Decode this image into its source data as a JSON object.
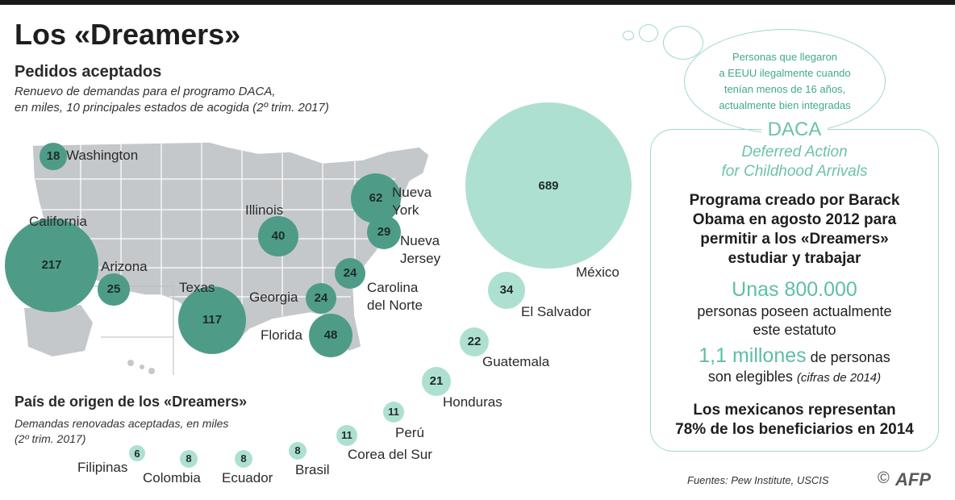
{
  "header": {
    "title": "Los «Dreamers»",
    "subtitle": "Pedidos aceptados",
    "description": "Renuevo de demandas para el programo DACA,\nen miles, 10 principales estados de acogida (2º trim. 2017)"
  },
  "section2": {
    "title": "País de origen de los «Dreamers»",
    "description": "Demandas renovadas aceptadas, en miles\n(2º trim. 2017)"
  },
  "colors": {
    "states": "#4e9c87",
    "countries": "#aee0d2",
    "accent": "#5cbfa5"
  },
  "chart_data": [
    {
      "type": "bubble",
      "title": "Pedidos aceptados",
      "series": [
        {
          "categories": [
            "Washington",
            "California",
            "Arizona",
            "Texas",
            "Illinois",
            "Georgia",
            "Florida",
            "Nueva York",
            "Nueva Jersey",
            "Carolina del Norte"
          ],
          "values": [
            18,
            217,
            25,
            117,
            40,
            24,
            48,
            62,
            29,
            24
          ]
        }
      ]
    },
    {
      "type": "bubble",
      "title": "País de origen de los «Dreamers»",
      "series": [
        {
          "categories": [
            "México",
            "El Salvador",
            "Guatemala",
            "Honduras",
            "Perú",
            "Corea del Sur",
            "Brasil",
            "Ecuador",
            "Colombia",
            "Filipinas"
          ],
          "values": [
            689,
            34,
            22,
            21,
            11,
            11,
            8,
            8,
            8,
            6
          ]
        }
      ]
    }
  ],
  "state_labels": [
    "Washington",
    "California",
    "Arizona",
    "Texas",
    "Illinois",
    "Georgia",
    "Florida",
    "Nueva\nYork",
    "Nueva\nJersey",
    "Carolina\ndel Norte"
  ],
  "info": {
    "bubble_text": "Personas que llegaron\na EEUU ilegalmente cuando\ntenían menos de 16 años,\nactualmente bien integradas",
    "daca": "DACA",
    "daca_full": "Deferred Action\nfor Childhood Arrivals",
    "program_desc": "Programa creado por Barack\nObama en agosto 2012 para\npermitir a los «Dreamers»\nestudiar y trabajar",
    "stat1_value": "Unas 800.000",
    "stat1_text": "personas poseen actualmente\neste estatuto",
    "stat2_value": "1,1 millones",
    "stat2_text": " de personas",
    "stat2_text2": "son elegibles ",
    "stat2_note": "(cifras de 2014)",
    "conclusion": "Los mexicanos representan\n78% de los beneficiarios en 2014"
  },
  "footer": {
    "source": "Fuentes: Pew Institute, USCIS",
    "copyright": "©",
    "agency": "AFP"
  }
}
